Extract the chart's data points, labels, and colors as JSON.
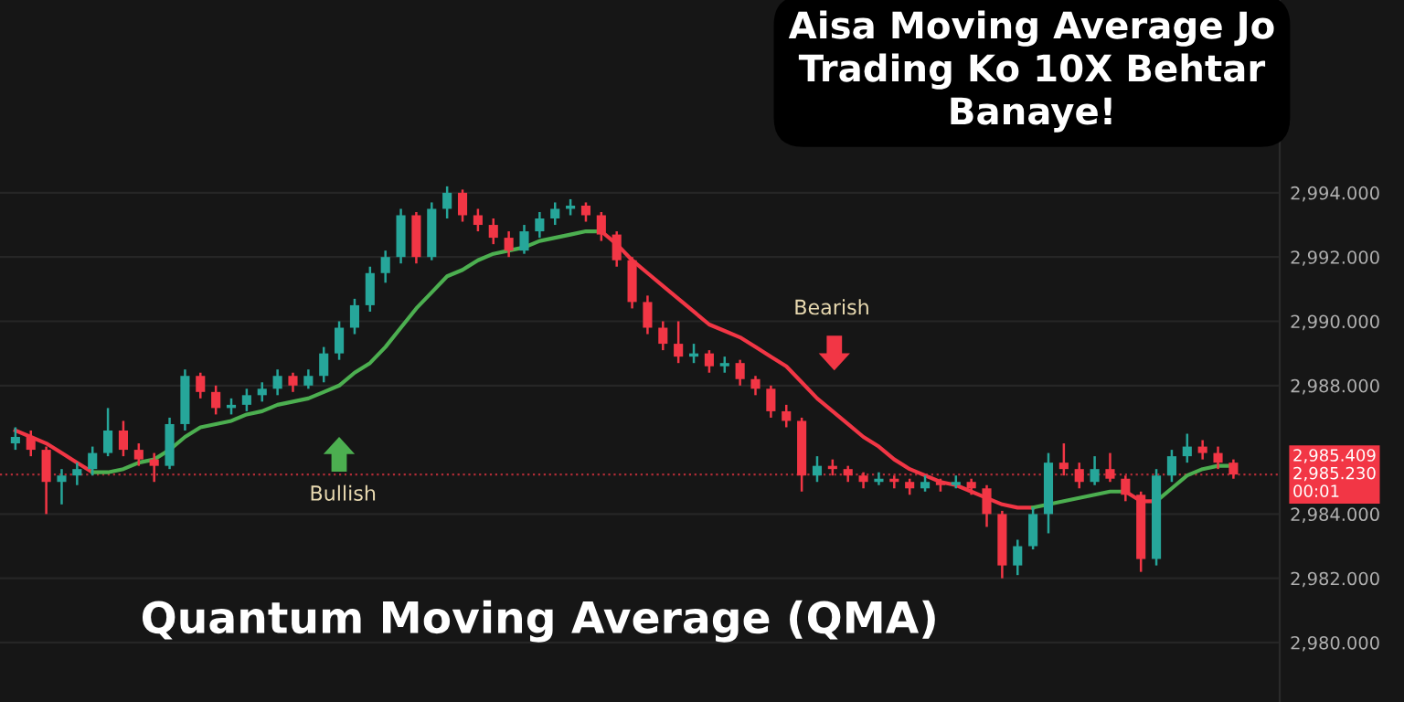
{
  "chart_data": {
    "type": "candlestick",
    "title": "Aisa Moving Average Jo\nTrading Ko 10X Behtar\nBanaye!",
    "subtitle": "Quantum Moving Average (QMA)",
    "annotations": [
      "Bullish",
      "Bearish",
      "2,985.409",
      "00:01"
    ],
    "categories": [
      null,
      null,
      null,
      null,
      null,
      null,
      null,
      null,
      null,
      null,
      null,
      null,
      null,
      null,
      null,
      null,
      null,
      null,
      null,
      null,
      null,
      null,
      null,
      null,
      null,
      null,
      null,
      null,
      null,
      null,
      null,
      null,
      null,
      null,
      null,
      null,
      null,
      null,
      null,
      null,
      null,
      null,
      null,
      null,
      null,
      null,
      null,
      null,
      null,
      null,
      null,
      null,
      null,
      null,
      null,
      null,
      null,
      null,
      null,
      null,
      null,
      null,
      null,
      null,
      null,
      null,
      null,
      null,
      null,
      null,
      null,
      null,
      null,
      null,
      null,
      null,
      null,
      null,
      null,
      null
    ],
    "ohlc": [
      [
        2986.2,
        2986.7,
        2986.0,
        2986.4
      ],
      [
        2986.4,
        2986.6,
        2985.8,
        2986.0
      ],
      [
        2986.0,
        2986.1,
        2984.0,
        2985.0
      ],
      [
        2985.0,
        2985.4,
        2984.3,
        2985.2
      ],
      [
        2985.2,
        2985.6,
        2984.9,
        2985.4
      ],
      [
        2985.4,
        2986.1,
        2985.2,
        2985.9
      ],
      [
        2985.9,
        2987.3,
        2985.8,
        2986.6
      ],
      [
        2986.6,
        2986.9,
        2985.8,
        2986.0
      ],
      [
        2986.0,
        2986.2,
        2985.5,
        2985.7
      ],
      [
        2985.7,
        2985.9,
        2985.0,
        2985.5
      ],
      [
        2985.5,
        2987.0,
        2985.4,
        2986.8
      ],
      [
        2986.8,
        2988.5,
        2986.6,
        2988.3
      ],
      [
        2988.3,
        2988.4,
        2987.6,
        2987.8
      ],
      [
        2987.8,
        2988.0,
        2987.1,
        2987.3
      ],
      [
        2987.3,
        2987.6,
        2987.1,
        2987.4
      ],
      [
        2987.4,
        2987.9,
        2987.2,
        2987.7
      ],
      [
        2987.7,
        2988.1,
        2987.5,
        2987.9
      ],
      [
        2987.9,
        2988.5,
        2987.7,
        2988.3
      ],
      [
        2988.3,
        2988.4,
        2987.8,
        2988.0
      ],
      [
        2988.0,
        2988.5,
        2987.9,
        2988.3
      ],
      [
        2988.3,
        2989.2,
        2988.1,
        2989.0
      ],
      [
        2989.0,
        2990.0,
        2988.8,
        2989.8
      ],
      [
        2989.8,
        2990.7,
        2989.6,
        2990.5
      ],
      [
        2990.5,
        2991.7,
        2990.3,
        2991.5
      ],
      [
        2991.5,
        2992.2,
        2991.2,
        2992.0
      ],
      [
        2992.0,
        2993.5,
        2991.8,
        2993.3
      ],
      [
        2993.3,
        2993.4,
        2991.8,
        2992.0
      ],
      [
        2992.0,
        2993.7,
        2991.9,
        2993.5
      ],
      [
        2993.5,
        2994.2,
        2993.2,
        2994.0
      ],
      [
        2994.0,
        2994.1,
        2993.1,
        2993.3
      ],
      [
        2993.3,
        2993.5,
        2992.8,
        2993.0
      ],
      [
        2993.0,
        2993.2,
        2992.4,
        2992.6
      ],
      [
        2992.6,
        2992.8,
        2992.0,
        2992.2
      ],
      [
        2992.2,
        2993.0,
        2992.1,
        2992.8
      ],
      [
        2992.8,
        2993.4,
        2992.6,
        2993.2
      ],
      [
        2993.2,
        2993.7,
        2993.0,
        2993.5
      ],
      [
        2993.5,
        2993.8,
        2993.3,
        2993.6
      ],
      [
        2993.6,
        2993.7,
        2993.1,
        2993.3
      ],
      [
        2993.3,
        2993.4,
        2992.5,
        2992.7
      ],
      [
        2992.7,
        2992.8,
        2991.7,
        2991.9
      ],
      [
        2991.9,
        2992.0,
        2990.4,
        2990.6
      ],
      [
        2990.6,
        2990.8,
        2989.6,
        2989.8
      ],
      [
        2989.8,
        2990.0,
        2989.1,
        2989.3
      ],
      [
        2989.3,
        2990.0,
        2988.7,
        2988.9
      ],
      [
        2988.9,
        2989.3,
        2988.7,
        2989.0
      ],
      [
        2989.0,
        2989.1,
        2988.4,
        2988.6
      ],
      [
        2988.6,
        2988.9,
        2988.4,
        2988.7
      ],
      [
        2988.7,
        2988.8,
        2988.0,
        2988.2
      ],
      [
        2988.2,
        2988.3,
        2987.7,
        2987.9
      ],
      [
        2987.9,
        2988.0,
        2987.0,
        2987.2
      ],
      [
        2987.2,
        2987.4,
        2986.7,
        2986.9
      ],
      [
        2986.9,
        2987.0,
        2984.7,
        2985.2
      ],
      [
        2985.2,
        2985.8,
        2985.0,
        2985.5
      ],
      [
        2985.5,
        2985.7,
        2985.2,
        2985.4
      ],
      [
        2985.4,
        2985.5,
        2985.0,
        2985.2
      ],
      [
        2985.2,
        2985.3,
        2984.8,
        2985.0
      ],
      [
        2985.0,
        2985.3,
        2984.9,
        2985.1
      ],
      [
        2985.1,
        2985.2,
        2984.8,
        2985.0
      ],
      [
        2985.0,
        2985.1,
        2984.6,
        2984.8
      ],
      [
        2984.8,
        2985.2,
        2984.7,
        2985.0
      ],
      [
        2985.0,
        2985.1,
        2984.7,
        2984.9
      ],
      [
        2984.9,
        2985.2,
        2984.8,
        2985.0
      ],
      [
        2985.0,
        2985.1,
        2984.6,
        2984.8
      ],
      [
        2984.8,
        2984.9,
        2983.6,
        2984.0
      ],
      [
        2984.0,
        2984.1,
        2982.0,
        2982.4
      ],
      [
        2982.4,
        2983.2,
        2982.1,
        2983.0
      ],
      [
        2983.0,
        2984.2,
        2982.9,
        2984.0
      ],
      [
        2984.0,
        2985.9,
        2983.4,
        2985.6
      ],
      [
        2985.6,
        2986.2,
        2985.2,
        2985.4
      ],
      [
        2985.4,
        2985.6,
        2984.8,
        2985.0
      ],
      [
        2985.0,
        2985.8,
        2984.9,
        2985.4
      ],
      [
        2985.4,
        2985.9,
        2985.0,
        2985.1
      ],
      [
        2985.1,
        2985.2,
        2984.4,
        2984.6
      ],
      [
        2984.6,
        2984.7,
        2982.2,
        2982.6
      ],
      [
        2982.6,
        2985.4,
        2982.4,
        2985.2
      ],
      [
        2985.2,
        2986.0,
        2985.0,
        2985.8
      ],
      [
        2985.8,
        2986.5,
        2985.6,
        2986.1
      ],
      [
        2986.1,
        2986.3,
        2985.7,
        2985.9
      ],
      [
        2985.9,
        2986.1,
        2985.4,
        2985.6
      ],
      [
        2985.6,
        2985.7,
        2985.1,
        2985.23
      ]
    ],
    "colors": [
      "#26a69a",
      "#f23645",
      "#f23645",
      "#26a69a",
      "#26a69a",
      "#26a69a",
      "#26a69a",
      "#f23645",
      "#f23645",
      "#f23645",
      "#26a69a",
      "#26a69a",
      "#f23645",
      "#f23645",
      "#26a69a",
      "#26a69a",
      "#26a69a",
      "#26a69a",
      "#f23645",
      "#26a69a",
      "#26a69a",
      "#26a69a",
      "#26a69a",
      "#26a69a",
      "#26a69a",
      "#26a69a",
      "#f23645",
      "#26a69a",
      "#26a69a",
      "#f23645",
      "#f23645",
      "#f23645",
      "#f23645",
      "#26a69a",
      "#26a69a",
      "#26a69a",
      "#26a69a",
      "#f23645",
      "#f23645",
      "#f23645",
      "#f23645",
      "#f23645",
      "#f23645",
      "#f23645",
      "#26a69a",
      "#f23645",
      "#26a69a",
      "#f23645",
      "#f23645",
      "#f23645",
      "#f23645",
      "#f23645",
      "#26a69a",
      "#f23645",
      "#f23645",
      "#f23645",
      "#26a69a",
      "#f23645",
      "#f23645",
      "#26a69a",
      "#f23645",
      "#26a69a",
      "#f23645",
      "#f23645",
      "#f23645",
      "#26a69a",
      "#26a69a",
      "#26a69a",
      "#f23645",
      "#f23645",
      "#26a69a",
      "#f23645",
      "#f23645",
      "#f23645",
      "#26a69a",
      "#26a69a",
      "#26a69a",
      "#f23645",
      "#f23645",
      "#f23645"
    ],
    "series": [
      {
        "type": "line",
        "color": "#f23645",
        "values": [
          2986.6,
          2986.4,
          2986.2,
          2985.9,
          2985.6,
          2985.3,
          null,
          null,
          null,
          null,
          null,
          null,
          null,
          null,
          null,
          null,
          null,
          null,
          null,
          null,
          null,
          null,
          null,
          null,
          null,
          null,
          null,
          null,
          null,
          null,
          null,
          null,
          null,
          null,
          null,
          null,
          null,
          null,
          2992.8,
          2992.4,
          2991.9,
          2991.5,
          2991.1,
          2990.7,
          2990.3,
          2989.9,
          2989.7,
          2989.5,
          2989.2,
          2988.9,
          2988.6,
          2988.1,
          2987.6,
          2987.2,
          2986.8,
          2986.4,
          2986.1,
          2985.7,
          2985.4,
          2985.2,
          2985.0,
          2984.9,
          2984.7,
          2984.5,
          2984.3,
          2984.2,
          2984.2,
          null,
          null,
          null,
          null,
          null,
          2984.7,
          2984.4,
          2984.4,
          null,
          null,
          null,
          null,
          null
        ]
      },
      {
        "type": "line",
        "color": "#4caf50",
        "values": [
          null,
          null,
          null,
          null,
          null,
          2985.3,
          2985.3,
          2985.4,
          2985.6,
          2985.7,
          2986.0,
          2986.4,
          2986.7,
          2986.8,
          2986.9,
          2987.1,
          2987.2,
          2987.4,
          2987.5,
          2987.6,
          2987.8,
          2988.0,
          2988.4,
          2988.7,
          2989.2,
          2989.8,
          2990.4,
          2990.9,
          2991.4,
          2991.6,
          2991.9,
          2992.1,
          2992.2,
          2992.3,
          2992.5,
          2992.6,
          2992.7,
          2992.8,
          2992.8,
          null,
          null,
          null,
          null,
          null,
          null,
          null,
          null,
          null,
          null,
          null,
          null,
          null,
          null,
          null,
          null,
          null,
          null,
          null,
          null,
          null,
          null,
          null,
          null,
          null,
          null,
          null,
          2984.2,
          2984.3,
          2984.4,
          2984.5,
          2984.6,
          2984.7,
          2984.7,
          null,
          2984.4,
          2984.8,
          2985.2,
          2985.4,
          2985.5,
          2985.5
        ]
      }
    ],
    "ylim": [
      2978.15,
      3000
    ],
    "yticks": [
      {
        "value": 2980,
        "label": "2,980.000"
      },
      {
        "value": 2982,
        "label": "2,982.000"
      },
      {
        "value": 2984,
        "label": "2,984.000"
      },
      {
        "value": 2988,
        "label": "2,988.000"
      },
      {
        "value": 2990,
        "label": "2,990.000"
      },
      {
        "value": 2992,
        "label": "2,992.000"
      },
      {
        "value": 2994,
        "label": "2,994.000"
      }
    ],
    "ref_lines": [
      {
        "axis": "y",
        "value": 2985.23,
        "label": "2,985.230",
        "color": "#f23645",
        "line_style": "dotted"
      }
    ],
    "grid": "y",
    "tick_labels": "y",
    "legend": false
  }
}
